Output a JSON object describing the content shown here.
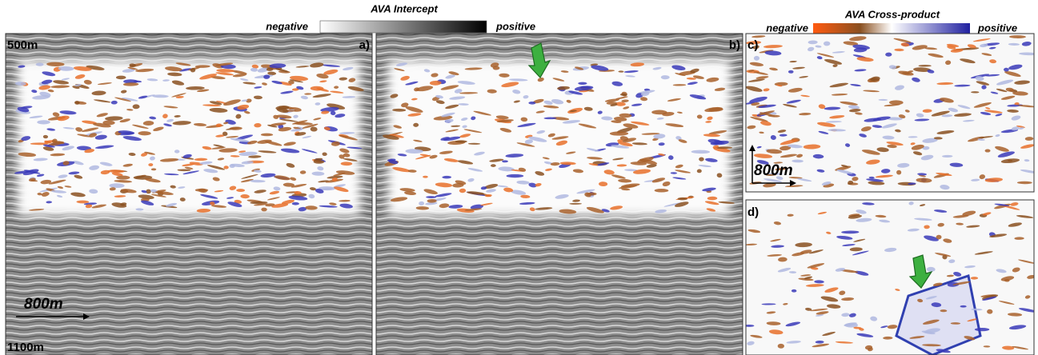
{
  "colorbars": {
    "intercept": {
      "title": "AVA Intercept",
      "negative": "negative",
      "positive": "positive"
    },
    "cross_product": {
      "title": "AVA Cross-product",
      "negative": "negative",
      "positive": "positive"
    }
  },
  "panels": {
    "a": {
      "label": "a)",
      "top_depth": "500m",
      "bottom_depth": "1100m",
      "scale": "800m"
    },
    "b": {
      "label": "b)"
    },
    "c": {
      "label": "c)",
      "scale": "800m"
    },
    "d": {
      "label": "d)"
    }
  }
}
